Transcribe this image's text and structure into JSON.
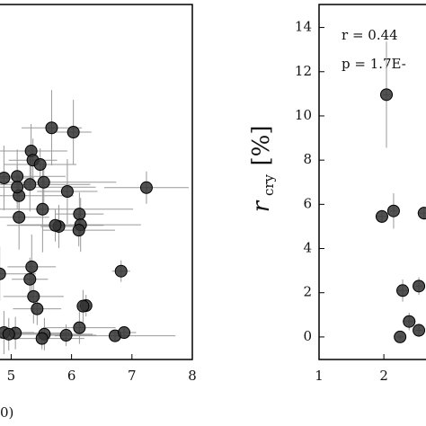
{
  "chart_data": [
    {
      "type": "scatter",
      "xlabel": "0)",
      "xlim": [
        4.8,
        8
      ],
      "ylim": [
        -0.42,
        6.17
      ],
      "xticks": [
        5,
        6,
        7,
        8
      ],
      "color": "#333333",
      "x": [
        6.03,
        5.67,
        5.33,
        5.36,
        4.88,
        5.1,
        5.48,
        5.31,
        5.54,
        5.93,
        6.13,
        6.15,
        6.12,
        5.79,
        5.73,
        5.52,
        5.13,
        5.13,
        5.1,
        7.24,
        6.82,
        4.81,
        5.34,
        5.31,
        5.37,
        5.43,
        6.24,
        6.19,
        6.13,
        5.91,
        5.55,
        5.51,
        5.07,
        4.88,
        4.96,
        6.72,
        6.87
      ],
      "values": [
        3.8,
        3.88,
        3.45,
        3.28,
        2.95,
        2.98,
        3.2,
        2.83,
        2.87,
        2.7,
        2.28,
        2.08,
        1.98,
        2.05,
        2.07,
        2.37,
        2.62,
        2.22,
        2.78,
        2.77,
        1.22,
        1.17,
        1.3,
        1.07,
        0.75,
        0.52,
        0.58,
        0.57,
        0.17,
        0.03,
        0.05,
        -0.03,
        0.07,
        0.08,
        0.05,
        0.02,
        0.08
      ],
      "x_err": [
        0.3,
        0.5,
        0.6,
        0.4,
        0.5,
        0.8,
        0.6,
        1.0,
        1.2,
        0.5,
        0.4,
        1.0,
        0.6,
        0.3,
        0.8,
        1.5,
        0.9,
        0.5,
        1.3,
        0.7,
        0.15,
        0.6,
        0.4,
        0.3,
        0.5,
        0.4,
        0.1,
        0.1,
        0.6,
        0.5,
        0.8,
        0.7,
        0.9,
        0.5,
        0.6,
        1.0,
        0.2
      ],
      "y_err": [
        0.6,
        0.7,
        0.5,
        0.4,
        0.6,
        0.5,
        0.3,
        0.5,
        0.4,
        0.6,
        0.4,
        0.5,
        0.3,
        0.4,
        0.3,
        0.8,
        0.4,
        0.6,
        0.4,
        0.3,
        0.2,
        0.5,
        0.6,
        0.4,
        0.5,
        0.3,
        0.2,
        0.3,
        0.3,
        0.2,
        0.3,
        0.2,
        0.3,
        0.4,
        0.3,
        0.1,
        0.1
      ]
    },
    {
      "type": "scatter",
      "ylabel": {
        "symbol": "r",
        "subscript": "cry",
        "unit": "[%]"
      },
      "annotations": [
        "r = 0.44",
        "p = 1.7E-"
      ],
      "xlim": [
        1,
        2.65
      ],
      "ylim": [
        -1.02,
        15.04
      ],
      "xticks": [
        1,
        2
      ],
      "yticks": [
        0,
        2,
        4,
        6,
        8,
        10,
        12,
        14
      ],
      "color": "#333333",
      "x": [
        1.97,
        2.15,
        2.04,
        2.62,
        2.29,
        2.39,
        2.25,
        2.54,
        2.54
      ],
      "values": [
        5.45,
        5.7,
        10.96,
        5.6,
        2.1,
        0.7,
        0.0,
        2.3,
        0.3
      ],
      "x_err": [
        0.1,
        0.05,
        0.05,
        0.1,
        0.08,
        0.1,
        0.05,
        0.05,
        0.05
      ],
      "y_err": [
        0.3,
        0.8,
        2.4,
        0.3,
        0.5,
        0.4,
        0.1,
        0.4,
        0.3
      ]
    }
  ]
}
